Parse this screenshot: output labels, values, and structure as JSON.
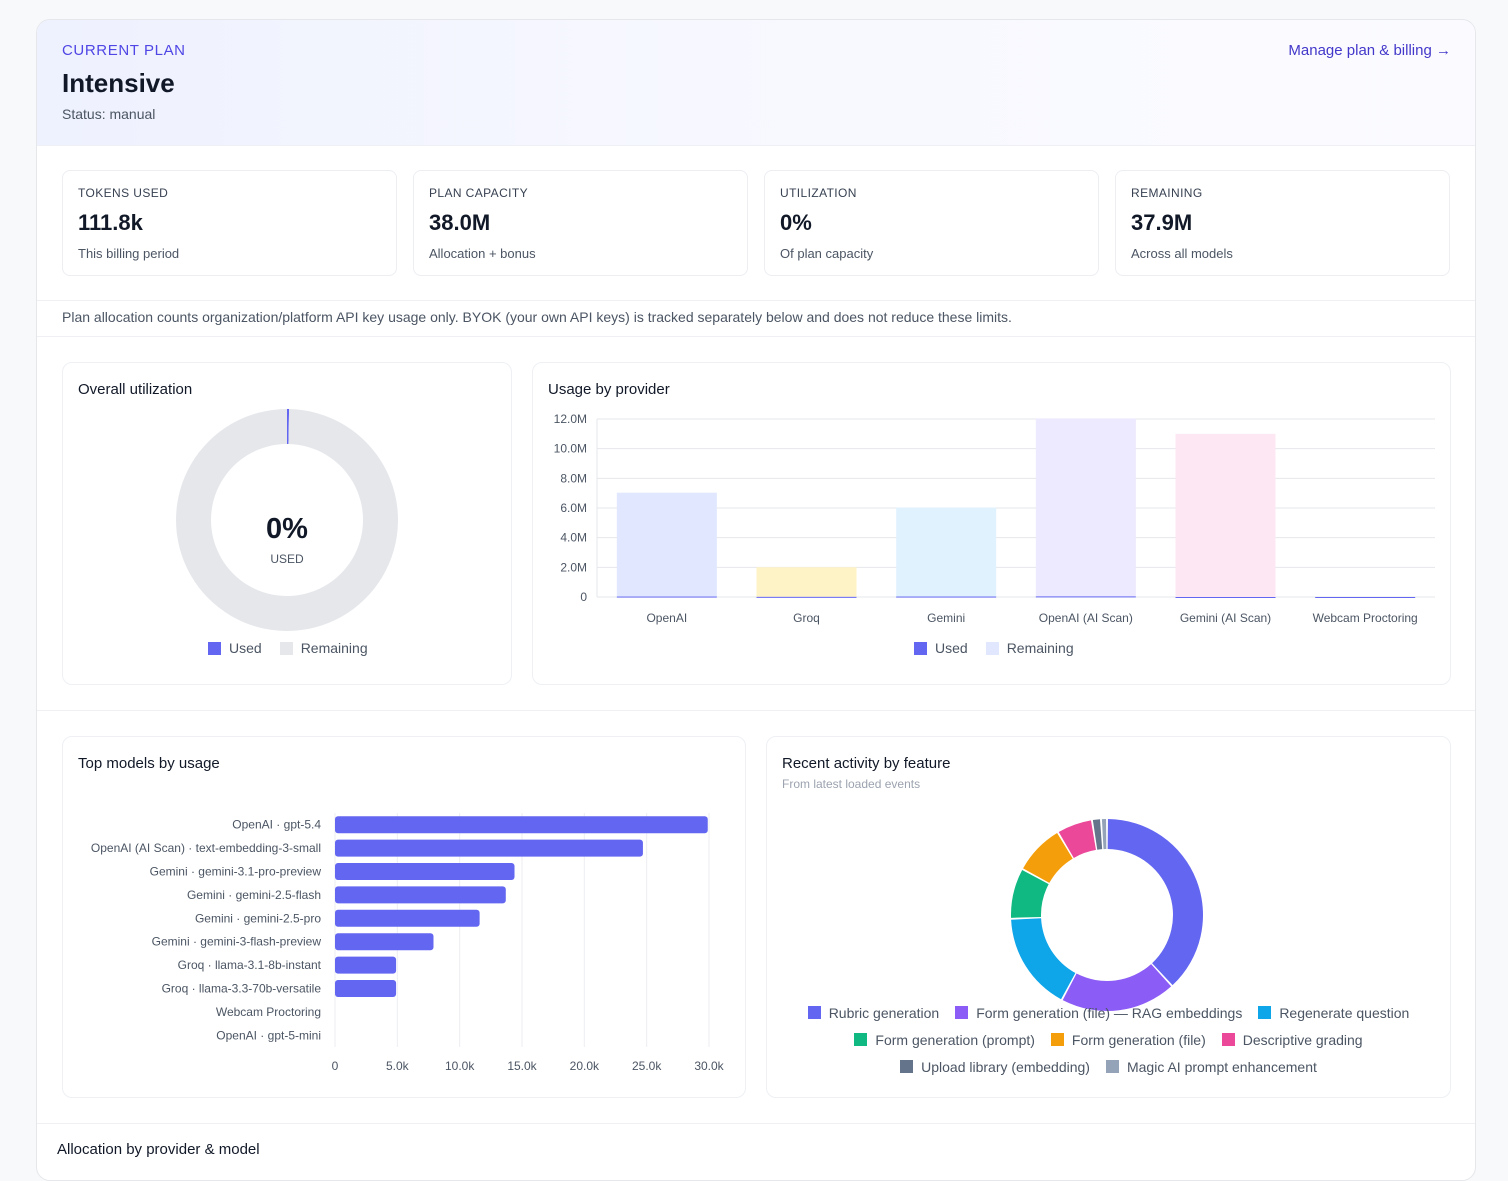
{
  "plan": {
    "eyebrow": "CURRENT PLAN",
    "name": "Intensive",
    "status": "Status: manual",
    "manage_link": "Manage plan & billing →"
  },
  "stats": [
    {
      "label": "TOKENS USED",
      "value": "111.8k",
      "sub": "This billing period"
    },
    {
      "label": "PLAN CAPACITY",
      "value": "38.0M",
      "sub": "Allocation + bonus"
    },
    {
      "label": "UTILIZATION",
      "value": "0%",
      "sub": "Of plan capacity"
    },
    {
      "label": "REMAINING",
      "value": "37.9M",
      "sub": "Across all models"
    }
  ],
  "note": "Plan allocation counts organization/platform API key usage only. BYOK (your own API keys) is tracked separately below and does not reduce these limits.",
  "utilization_panel": {
    "title": "Overall utilization",
    "center_value": "0%",
    "center_label": "USED",
    "legend": [
      {
        "label": "Used",
        "color": "#6366f1"
      },
      {
        "label": "Remaining",
        "color": "#e5e7eb"
      }
    ]
  },
  "provider_panel": {
    "title": "Usage by provider",
    "legend": [
      {
        "label": "Used",
        "color": "#6366f1"
      },
      {
        "label": "Remaining",
        "color": "#e0e7ff"
      }
    ]
  },
  "models_panel": {
    "title": "Top models by usage"
  },
  "activity_panel": {
    "title": "Recent activity by feature",
    "subtitle": "From latest loaded events",
    "legend_rows": [
      [
        {
          "label": "Rubric generation",
          "color": "#6366f1"
        },
        {
          "label": "Form generation (file) — RAG embeddings",
          "color": "#8b5cf6"
        },
        {
          "label": "Regenerate question",
          "color": "#0ea5e9"
        }
      ],
      [
        {
          "label": "Form generation (prompt)",
          "color": "#10b981"
        },
        {
          "label": "Form generation (file)",
          "color": "#f59e0b"
        },
        {
          "label": "Descriptive grading",
          "color": "#ec4899"
        }
      ],
      [
        {
          "label": "Upload library (embedding)",
          "color": "#64748b"
        },
        {
          "label": "Magic AI prompt enhancement",
          "color": "#94a3b8"
        }
      ]
    ]
  },
  "bottom_section": {
    "title": "Allocation by provider & model"
  },
  "chart_data": [
    {
      "type": "pie",
      "title": "Overall utilization",
      "labels": [
        "Used",
        "Remaining"
      ],
      "values": [
        0.3,
        99.7
      ],
      "colors": [
        "#6366f1",
        "#e5e7eb"
      ]
    },
    {
      "type": "bar",
      "title": "Usage by provider",
      "categories": [
        "OpenAI",
        "Groq",
        "Gemini",
        "OpenAI (AI Scan)",
        "Gemini (AI Scan)",
        "Webcam Proctoring"
      ],
      "series": [
        {
          "name": "Used",
          "values": [
            0.03,
            0.01,
            0.03,
            0.04,
            0.0,
            0.0
          ],
          "color": "#6366f1"
        },
        {
          "name": "Remaining",
          "values": [
            7.0,
            2.0,
            6.0,
            12.0,
            11.0,
            0.0
          ],
          "colors": [
            "#e0e7ff",
            "#fef3c7",
            "#e0f2fe",
            "#ede9fe",
            "#fce7f3",
            "#e5e7eb"
          ]
        }
      ],
      "stacked": true,
      "ylim": [
        0,
        12
      ],
      "yticks": [
        "0",
        "2.0M",
        "4.0M",
        "6.0M",
        "8.0M",
        "10.0M",
        "12.0M"
      ],
      "legend_position": "bottom"
    },
    {
      "type": "bar",
      "orientation": "horizontal",
      "title": "Top models by usage",
      "categories": [
        "OpenAI · gpt-5.4",
        "OpenAI (AI Scan) · text-embedding-3-small",
        "Gemini · gemini-3.1-pro-preview",
        "Gemini · gemini-2.5-flash",
        "Gemini · gemini-2.5-pro",
        "Gemini · gemini-3-flash-preview",
        "Groq · llama-3.1-8b-instant",
        "Groq · llama-3.3-70b-versatile",
        "Webcam Proctoring",
        "OpenAI · gpt-5-mini"
      ],
      "values": [
        29900,
        24700,
        14400,
        13700,
        11600,
        7900,
        4900,
        4900,
        0,
        0
      ],
      "color": "#6366f1",
      "xlim": [
        0,
        30000
      ],
      "xticks": [
        "0",
        "5.0k",
        "10.0k",
        "15.0k",
        "20.0k",
        "25.0k",
        "30.0k"
      ]
    },
    {
      "type": "pie",
      "title": "Recent activity by feature",
      "labels": [
        "Rubric generation",
        "Form generation (file) — RAG embeddings",
        "Regenerate question",
        "Form generation (prompt)",
        "Form generation (file)",
        "Descriptive grading",
        "Upload library (embedding)",
        "Magic AI prompt enhancement"
      ],
      "values": [
        38,
        19.5,
        16.5,
        8.5,
        8.5,
        6,
        1.5,
        1
      ],
      "colors": [
        "#6366f1",
        "#8b5cf6",
        "#0ea5e9",
        "#10b981",
        "#f59e0b",
        "#ec4899",
        "#64748b",
        "#94a3b8"
      ],
      "legend_position": "bottom"
    }
  ]
}
